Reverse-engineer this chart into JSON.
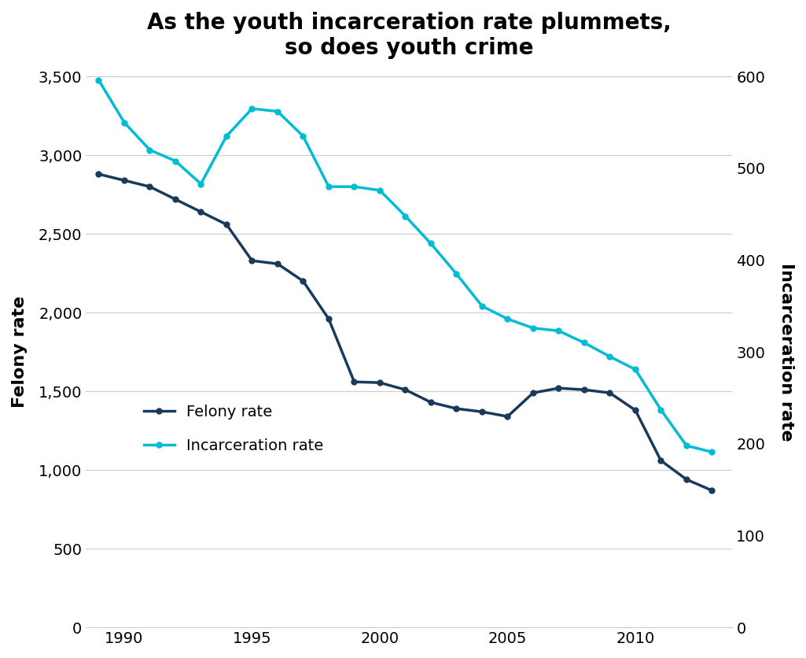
{
  "title": "As the youth incarceration rate plummets,\nso does youth crime",
  "felony_years": [
    1989,
    1990,
    1991,
    1992,
    1993,
    1994,
    1995,
    1996,
    1997,
    1998,
    1999,
    2000,
    2001,
    2002,
    2003,
    2004,
    2005,
    2006,
    2007,
    2008,
    2009,
    2010,
    2011,
    2012,
    2013
  ],
  "felony_values": [
    2880,
    2840,
    2800,
    2720,
    2640,
    2560,
    2330,
    2310,
    2200,
    1960,
    1560,
    1555,
    1510,
    1430,
    1390,
    1370,
    1340,
    1490,
    1520,
    1510,
    1490,
    1380,
    1060,
    940,
    870
  ],
  "incarc_years": [
    1989,
    1990,
    1991,
    1992,
    1993,
    1994,
    1995,
    1996,
    1997,
    1998,
    1999,
    2000,
    2001,
    2002,
    2003,
    2004,
    2005,
    2006,
    2007,
    2008,
    2009,
    2010,
    2011,
    2012,
    2013
  ],
  "incarc_values": [
    596,
    550,
    520,
    508,
    483,
    535,
    565,
    562,
    535,
    480,
    480,
    476,
    448,
    418,
    385,
    350,
    336,
    326,
    323,
    310,
    295,
    281,
    237,
    198,
    191
  ],
  "felony_color": "#1a3a5c",
  "incarc_color": "#00bcd4",
  "ylabel_left": "Felony rate",
  "ylabel_right": "Incarceration rate",
  "ylim_left": [
    0,
    3500
  ],
  "ylim_right": [
    0,
    600
  ],
  "yticks_left": [
    0,
    500,
    1000,
    1500,
    2000,
    2500,
    3000,
    3500
  ],
  "yticks_right": [
    0,
    100,
    200,
    300,
    400,
    500,
    600
  ],
  "xlim": [
    1988.5,
    2013.8
  ],
  "xticks": [
    1990,
    1995,
    2000,
    2005,
    2010
  ],
  "legend_felony": "Felony rate",
  "legend_incarc": "Incarceration rate",
  "title_fontsize": 20,
  "axis_label_fontsize": 16,
  "tick_fontsize": 14,
  "legend_fontsize": 14,
  "marker_size": 5,
  "line_width": 2.5,
  "background_color": "#ffffff",
  "grid_color": "#cccccc",
  "bottom_spine_color": "#cccccc"
}
